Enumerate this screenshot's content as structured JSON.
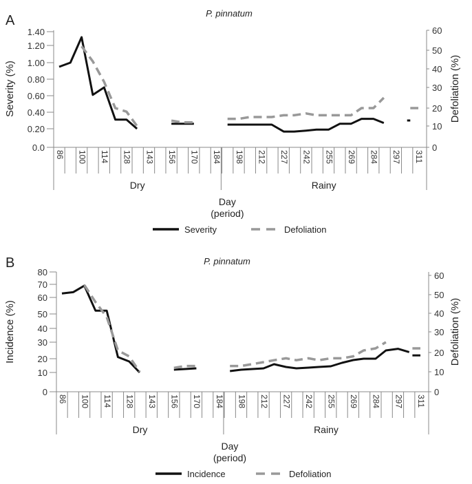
{
  "chart_data": [
    {
      "panel": "A",
      "type": "line",
      "title": "P. pinnatum",
      "xlabel": "Day (period)",
      "ylabel": "Severity (%)",
      "y2label": "Defoliation (%)",
      "yticks": [
        "1.40",
        "1.20",
        "1.00",
        "0.80",
        "0.60",
        "0.40",
        "0.20",
        "0.0"
      ],
      "ytick_values": [
        1.4,
        1.2,
        1.0,
        0.8,
        0.6,
        0.4,
        0.2,
        0.0
      ],
      "y2ticks": [
        "60",
        "50",
        "40",
        "30",
        "20",
        "10",
        "0"
      ],
      "y2tick_values": [
        60,
        50,
        40,
        30,
        20,
        10,
        0
      ],
      "ylim": [
        0,
        1.4
      ],
      "y2lim": [
        0,
        60
      ],
      "x_tick_labels": [
        "86",
        "100",
        "114",
        "128",
        "143",
        "156",
        "170",
        "184",
        "198",
        "212",
        "227",
        "242",
        "255",
        "269",
        "284",
        "297",
        "311"
      ],
      "periods": [
        {
          "name": "Dry",
          "range": [
            86,
            184
          ]
        },
        {
          "name": "Rainy",
          "range": [
            184,
            311
          ]
        }
      ],
      "legend": [
        "Severity",
        "Defoliation"
      ],
      "series": [
        {
          "name": "Severity",
          "axis": "left",
          "style": "solid",
          "color": "#111111",
          "segments": [
            [
              [
                86,
                0.95
              ],
              [
                93,
                1.0
              ],
              [
                100,
                1.32
              ],
              [
                107,
                0.61
              ],
              [
                114,
                0.7
              ],
              [
                121,
                0.31
              ],
              [
                128,
                0.31
              ],
              [
                135,
                0.2
              ]
            ],
            [
              [
                156,
                0.26
              ],
              [
                163,
                0.26
              ],
              [
                170,
                0.26
              ]
            ],
            [
              [
                191,
                0.25
              ],
              [
                198,
                0.25
              ],
              [
                205,
                0.25
              ],
              [
                212,
                0.25
              ],
              [
                219,
                0.25
              ],
              [
                227,
                0.17
              ],
              [
                234,
                0.17
              ],
              [
                242,
                0.18
              ],
              [
                248,
                0.19
              ],
              [
                255,
                0.19
              ],
              [
                262,
                0.26
              ],
              [
                269,
                0.26
              ],
              [
                276,
                0.32
              ],
              [
                284,
                0.32
              ],
              [
                290,
                0.27
              ]
            ],
            [
              [
                304,
                0.3
              ],
              [
                306,
                0.3
              ]
            ]
          ]
        },
        {
          "name": "Defoliation",
          "axis": "right",
          "style": "dashed",
          "color": "#999999",
          "segments": [
            [
              [
                100,
                52
              ],
              [
                107,
                44
              ],
              [
                114,
                33
              ],
              [
                121,
                20
              ],
              [
                128,
                18
              ],
              [
                135,
                10
              ]
            ],
            [
              [
                156,
                13
              ],
              [
                163,
                12
              ],
              [
                170,
                12
              ]
            ],
            [
              [
                191,
                14
              ],
              [
                198,
                14
              ],
              [
                205,
                15
              ],
              [
                212,
                15
              ],
              [
                219,
                15
              ],
              [
                227,
                16
              ],
              [
                234,
                16
              ],
              [
                242,
                17
              ],
              [
                248,
                16
              ],
              [
                255,
                16
              ],
              [
                262,
                16
              ],
              [
                269,
                16
              ],
              [
                276,
                20
              ],
              [
                284,
                20
              ],
              [
                290,
                25
              ]
            ],
            [
              [
                306,
                20
              ],
              [
                311,
                20
              ]
            ]
          ]
        }
      ]
    },
    {
      "panel": "B",
      "type": "line",
      "title": "P. pinnatum",
      "xlabel": "Day (period)",
      "ylabel": "Incidence (%)",
      "y2label": "Defoliation (%)",
      "yticks": [
        "80",
        "70",
        "60",
        "50",
        "40",
        "30",
        "20",
        "10",
        "0"
      ],
      "ytick_values": [
        80,
        70,
        60,
        50,
        40,
        30,
        20,
        10,
        0
      ],
      "y2ticks": [
        "60",
        "50",
        "40",
        "30",
        "20",
        "10",
        "0"
      ],
      "y2tick_values": [
        60,
        50,
        40,
        30,
        20,
        10,
        0
      ],
      "ylim": [
        0,
        80
      ],
      "y2lim": [
        0,
        60
      ],
      "x_tick_labels": [
        "86",
        "100",
        "114",
        "128",
        "143",
        "156",
        "170",
        "184",
        "198",
        "212",
        "227",
        "242",
        "255",
        "269",
        "284",
        "297",
        "311"
      ],
      "periods": [
        {
          "name": "Dry",
          "range": [
            86,
            184
          ]
        },
        {
          "name": "Rainy",
          "range": [
            184,
            311
          ]
        }
      ],
      "legend": [
        "Incidence",
        "Defoliation"
      ],
      "series": [
        {
          "name": "Incidence",
          "axis": "left",
          "style": "solid",
          "color": "#111111",
          "segments": [
            [
              [
                86,
                63
              ],
              [
                93,
                64
              ],
              [
                100,
                69
              ],
              [
                107,
                52
              ],
              [
                114,
                52
              ],
              [
                121,
                21
              ],
              [
                128,
                18
              ],
              [
                135,
                10
              ]
            ],
            [
              [
                156,
                12
              ],
              [
                163,
                12.5
              ],
              [
                170,
                13
              ]
            ],
            [
              [
                191,
                11
              ],
              [
                198,
                12
              ],
              [
                205,
                12.5
              ],
              [
                212,
                13
              ],
              [
                219,
                16
              ],
              [
                227,
                14
              ],
              [
                234,
                13
              ],
              [
                242,
                13.5
              ],
              [
                248,
                14
              ],
              [
                255,
                14.5
              ],
              [
                262,
                17
              ],
              [
                269,
                19
              ],
              [
                276,
                20
              ],
              [
                284,
                20
              ],
              [
                290,
                25
              ],
              [
                297,
                26
              ],
              [
                304,
                24
              ]
            ],
            [
              [
                306,
                22
              ],
              [
                311,
                22
              ]
            ]
          ]
        },
        {
          "name": "Defoliation",
          "axis": "right",
          "style": "dashed",
          "color": "#999999",
          "segments": [
            [
              [
                100,
                55
              ],
              [
                107,
                46
              ],
              [
                114,
                38
              ],
              [
                121,
                21
              ],
              [
                128,
                18
              ],
              [
                135,
                10
              ]
            ],
            [
              [
                156,
                12
              ],
              [
                163,
                13
              ],
              [
                170,
                13
              ]
            ],
            [
              [
                191,
                13
              ],
              [
                198,
                13
              ],
              [
                205,
                14
              ],
              [
                212,
                15
              ],
              [
                219,
                16
              ],
              [
                227,
                17
              ],
              [
                234,
                16
              ],
              [
                242,
                17
              ],
              [
                248,
                16
              ],
              [
                255,
                17
              ],
              [
                262,
                17
              ],
              [
                269,
                18
              ],
              [
                276,
                21
              ],
              [
                284,
                22
              ],
              [
                290,
                25
              ]
            ],
            [
              [
                306,
                22
              ],
              [
                311,
                22
              ]
            ]
          ]
        }
      ]
    }
  ]
}
